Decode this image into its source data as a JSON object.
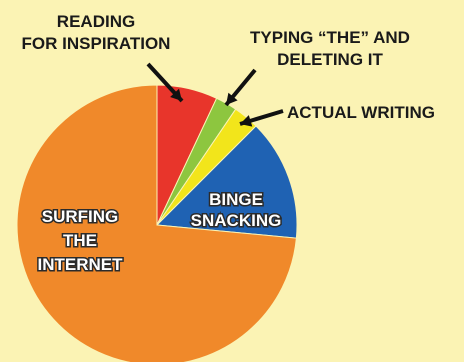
{
  "chart_data": {
    "type": "pie",
    "title": "",
    "start_angle_deg": 0,
    "direction": "clockwise",
    "slices": [
      {
        "label_lines": [
          "READING",
          "FOR INSPIRATION"
        ],
        "value": 7,
        "color": "#e8352b"
      },
      {
        "label_lines": [
          "TYPING “THE” AND",
          "DELETING IT"
        ],
        "value": 2.5,
        "color": "#8dc63f"
      },
      {
        "label_lines": [
          "ACTUAL WRITING"
        ],
        "value": 3,
        "color": "#f2e51b"
      },
      {
        "label_lines": [
          "BINGE",
          "SNACKING"
        ],
        "value": 14,
        "color": "#1f62b3"
      },
      {
        "label_lines": [
          "SURFING",
          "THE",
          "INTERNET"
        ],
        "value": 73.5,
        "color": "#f0892a"
      }
    ]
  }
}
